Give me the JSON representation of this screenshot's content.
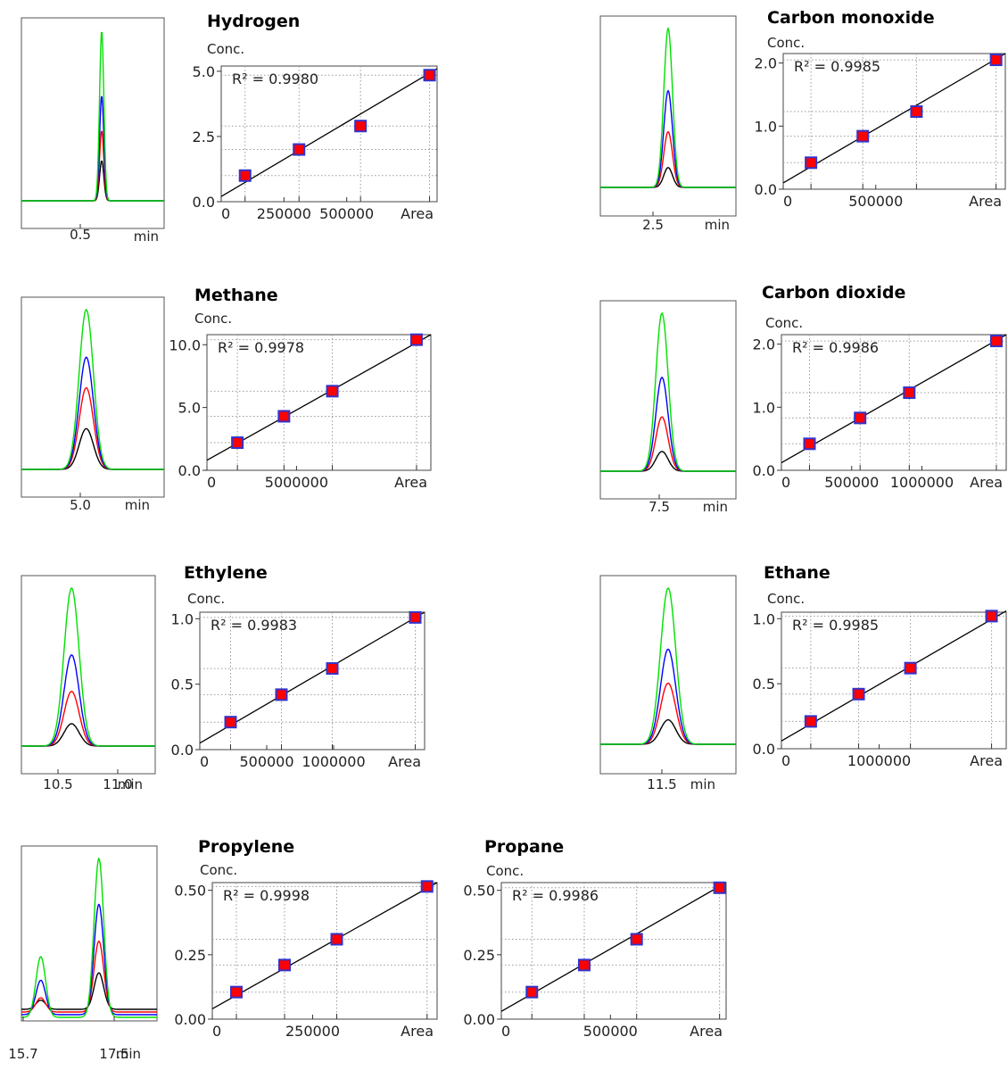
{
  "chart_data": [
    {
      "type": "scatter",
      "title": "Hydrogen",
      "ylabel": "Conc.",
      "xlabel": "Area",
      "r2_label": "R² = 0.9980",
      "xlim": [
        0,
        860000
      ],
      "ylim": [
        0,
        5.2
      ],
      "xticks": [
        0,
        250000,
        500000
      ],
      "xtick_labels": [
        "0",
        "250000",
        "500000"
      ],
      "yticks": [
        0,
        2.5,
        5.0
      ],
      "ytick_labels": [
        "0.0",
        "2.5",
        "5.0"
      ],
      "x": [
        95000,
        310000,
        555000,
        830000
      ],
      "y": [
        1.0,
        2.0,
        2.9,
        4.85
      ],
      "fit": {
        "x": [
          0,
          860000
        ],
        "y": [
          0.2,
          5.1
        ]
      },
      "chromatogram": {
        "xtick_labels": [
          "0.5"
        ],
        "unit": "min",
        "peaks": [
          {
            "center": 0.55,
            "sigma": 0.012,
            "heights": [
              0.4,
              0.7,
              1.05,
              1.7
            ]
          }
        ],
        "xlim": [
          0.1,
          0.9
        ]
      },
      "colors": {
        "marker_fill": "#ff0000",
        "marker_edge": "#3333cc",
        "fit_line": "#000000"
      }
    },
    {
      "type": "scatter",
      "title": "Carbon monoxide",
      "ylabel": "Conc.",
      "xlabel": "Area",
      "r2_label": "R² = 0.9985",
      "xlim": [
        0,
        1200000
      ],
      "ylim": [
        0,
        2.15
      ],
      "xticks": [
        0,
        500000
      ],
      "xtick_labels": [
        "0",
        "500000"
      ],
      "yticks": [
        0,
        1.0,
        2.0
      ],
      "ytick_labels": [
        "0.0",
        "1.0",
        "2.0"
      ],
      "x": [
        150000,
        430000,
        720000,
        1150000
      ],
      "y": [
        0.42,
        0.84,
        1.23,
        2.05
      ],
      "fit": {
        "x": [
          0,
          1200000
        ],
        "y": [
          0.1,
          2.15
        ]
      },
      "chromatogram": {
        "xtick_labels": [
          "2.5"
        ],
        "unit": "min",
        "peaks": [
          {
            "center": 2.5,
            "sigma": 0.045,
            "heights": [
              0.15,
              0.42,
              0.73,
              1.2
            ]
          }
        ],
        "xlim": [
          1.8,
          3.2
        ]
      },
      "colors": {
        "marker_fill": "#ff0000",
        "marker_edge": "#3333cc",
        "fit_line": "#000000"
      }
    },
    {
      "type": "scatter",
      "title": "Methane",
      "ylabel": "Conc.",
      "xlabel": "Area",
      "r2_label": "R² = 0.9978",
      "xlim": [
        0,
        12500000
      ],
      "ylim": [
        0,
        10.8
      ],
      "xticks": [
        0,
        5000000
      ],
      "xtick_labels": [
        "0",
        "5000000"
      ],
      "yticks": [
        0,
        5.0,
        10.0
      ],
      "ytick_labels": [
        "0.0",
        "5.0",
        "10.0"
      ],
      "x": [
        1700000,
        4300000,
        7000000,
        11700000
      ],
      "y": [
        2.2,
        4.3,
        6.3,
        10.4
      ],
      "fit": {
        "x": [
          0,
          12500000
        ],
        "y": [
          0.8,
          10.8
        ]
      },
      "chromatogram": {
        "xtick_labels": [
          "5.0"
        ],
        "unit": "min",
        "peaks": [
          {
            "center": 5.0,
            "sigma": 0.055,
            "heights": [
              0.6,
              1.2,
              1.65,
              2.35
            ]
          }
        ],
        "xlim": [
          4.5,
          5.6
        ]
      },
      "colors": {
        "marker_fill": "#ff0000",
        "marker_edge": "#3333cc",
        "fit_line": "#000000"
      }
    },
    {
      "type": "scatter",
      "title": "Carbon dioxide",
      "ylabel": "Conc.",
      "xlabel": "Area",
      "r2_label": "R² = 0.9986",
      "xlim": [
        0,
        1600000
      ],
      "ylim": [
        0,
        2.15
      ],
      "xticks": [
        0,
        500000,
        1000000
      ],
      "xtick_labels": [
        "0",
        "500000",
        "1000000"
      ],
      "yticks": [
        0,
        1.0,
        2.0
      ],
      "ytick_labels": [
        "0.0",
        "1.0",
        "2.0"
      ],
      "x": [
        200000,
        560000,
        910000,
        1530000
      ],
      "y": [
        0.42,
        0.83,
        1.23,
        2.05
      ],
      "fit": {
        "x": [
          0,
          1600000
        ],
        "y": [
          0.12,
          2.15
        ]
      },
      "chromatogram": {
        "xtick_labels": [
          "7.5"
        ],
        "unit": "min",
        "peaks": [
          {
            "center": 7.5,
            "sigma": 0.05,
            "heights": [
              0.2,
              0.55,
              0.95,
              1.6
            ]
          }
        ],
        "xlim": [
          7.0,
          8.1
        ]
      },
      "colors": {
        "marker_fill": "#ff0000",
        "marker_edge": "#3333cc",
        "fit_line": "#000000"
      }
    },
    {
      "type": "scatter",
      "title": "Ethylene",
      "ylabel": "Conc.",
      "xlabel": "Area",
      "r2_label": "R² = 0.9983",
      "xlim": [
        0,
        1680000
      ],
      "ylim": [
        0,
        1.05
      ],
      "xticks": [
        0,
        500000,
        1000000
      ],
      "xtick_labels": [
        "0",
        "500000",
        "1000000"
      ],
      "yticks": [
        0,
        0.5,
        1.0
      ],
      "ytick_labels": [
        "0.0",
        "0.5",
        "1.0"
      ],
      "x": [
        230000,
        610000,
        990000,
        1610000
      ],
      "y": [
        0.21,
        0.42,
        0.62,
        1.01
      ],
      "fit": {
        "x": [
          0,
          1680000
        ],
        "y": [
          0.05,
          1.05
        ]
      },
      "chromatogram": {
        "xtick_labels": [
          "10.5",
          "11.0"
        ],
        "unit": "min",
        "peaks": [
          {
            "center": 10.7,
            "sigma": 0.045,
            "heights": [
              0.11,
              0.27,
              0.45,
              0.78
            ]
          }
        ],
        "xlim": [
          10.4,
          11.2
        ]
      },
      "colors": {
        "marker_fill": "#ff0000",
        "marker_edge": "#3333cc",
        "fit_line": "#000000"
      }
    },
    {
      "type": "scatter",
      "title": "Ethane",
      "ylabel": "Conc.",
      "xlabel": "Area",
      "r2_label": "R² = 0.9985",
      "xlim": [
        0,
        2300000
      ],
      "ylim": [
        0,
        1.05
      ],
      "xticks": [
        0,
        1000000
      ],
      "xtick_labels": [
        "0",
        "1000000"
      ],
      "yticks": [
        0,
        0.5,
        1.0
      ],
      "ytick_labels": [
        "0.0",
        "0.5",
        "1.0"
      ],
      "x": [
        300000,
        790000,
        1320000,
        2150000
      ],
      "y": [
        0.21,
        0.42,
        0.62,
        1.02
      ],
      "fit": {
        "x": [
          0,
          2300000
        ],
        "y": [
          0.06,
          1.06
        ]
      },
      "chromatogram": {
        "xtick_labels": [
          "11.5"
        ],
        "unit": "min",
        "peaks": [
          {
            "center": 11.5,
            "sigma": 0.045,
            "heights": [
              0.18,
              0.45,
              0.7,
              1.15
            ]
          }
        ],
        "xlim": [
          11.1,
          11.9
        ]
      },
      "colors": {
        "marker_fill": "#ff0000",
        "marker_edge": "#3333cc",
        "fit_line": "#000000"
      }
    },
    {
      "type": "scatter",
      "title": "Propylene",
      "ylabel": "Conc.",
      "xlabel": "Area",
      "r2_label": "R² = 0.9998",
      "xlim": [
        0,
        560000
      ],
      "ylim": [
        0,
        0.53
      ],
      "xticks": [
        0,
        250000
      ],
      "xtick_labels": [
        "0",
        "250000"
      ],
      "yticks": [
        0,
        0.25,
        0.5
      ],
      "ytick_labels": [
        "0.00",
        "0.25",
        "0.50"
      ],
      "x": [
        60000,
        180000,
        310000,
        535000
      ],
      "y": [
        0.105,
        0.21,
        0.31,
        0.515
      ],
      "fit": {
        "x": [
          0,
          560000
        ],
        "y": [
          0.04,
          0.53
        ]
      },
      "chromatogram": {
        "xtick_labels": [
          "15.7",
          "17.5"
        ],
        "unit": "min",
        "peaks": [
          {
            "center": 16.1,
            "sigma": 0.1,
            "heights": [
              0.09,
              0.14,
              0.34,
              0.6
            ]
          },
          {
            "center": 17.3,
            "sigma": 0.1,
            "heights": [
              0.36,
              0.7,
              1.09,
              1.57
            ]
          }
        ],
        "xlim": [
          15.7,
          18.5
        ]
      },
      "colors": {
        "marker_fill": "#ff0000",
        "marker_edge": "#3333cc",
        "fit_line": "#000000"
      }
    },
    {
      "type": "scatter",
      "title": "Propane",
      "ylabel": "Conc.",
      "xlabel": "Area",
      "r2_label": "R² = 0.9986",
      "xlim": [
        0,
        1030000
      ],
      "ylim": [
        0,
        0.53
      ],
      "xticks": [
        0,
        500000
      ],
      "xtick_labels": [
        "0",
        "500000"
      ],
      "yticks": [
        0,
        0.25,
        0.5
      ],
      "ytick_labels": [
        "0.00",
        "0.25",
        "0.50"
      ],
      "x": [
        140000,
        380000,
        620000,
        1000000
      ],
      "y": [
        0.105,
        0.21,
        0.31,
        0.51
      ],
      "fit": {
        "x": [
          0,
          1030000
        ],
        "y": [
          0.03,
          0.53
        ]
      },
      "colors": {
        "marker_fill": "#ff0000",
        "marker_edge": "#3333cc",
        "fit_line": "#000000"
      }
    }
  ],
  "trace_colors": [
    "#000000",
    "#ff0000",
    "#0000ff",
    "#00e000"
  ]
}
